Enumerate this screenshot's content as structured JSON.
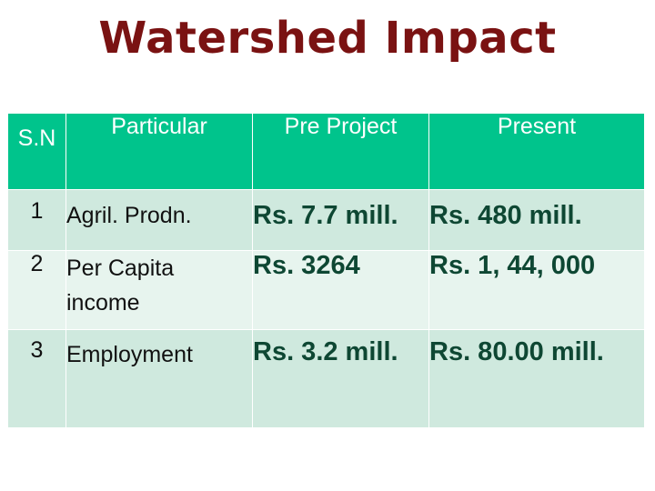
{
  "title": "Watershed Impact",
  "table": {
    "headers": [
      "S.N",
      "Particular",
      "Pre Project",
      "Present"
    ],
    "rows": [
      {
        "sn": "1",
        "particular": "Agril. Prodn.",
        "pre_project": "Rs. 7.7 mill.",
        "present": "Rs. 480 mill."
      },
      {
        "sn": "2",
        "particular": "Per Capita income",
        "pre_project": "Rs. 3264",
        "present": "Rs. 1, 44, 000"
      },
      {
        "sn": "3",
        "particular": "Employment",
        "pre_project": "Rs. 3.2 mill.",
        "present": "Rs. 80.00 mill."
      }
    ]
  },
  "colors": {
    "title": "#7a1212",
    "header_bg": "#00c48c",
    "row_bg": "#cfe9de",
    "row_alt_bg": "#e7f4ee",
    "value_text": "#0e4733"
  }
}
